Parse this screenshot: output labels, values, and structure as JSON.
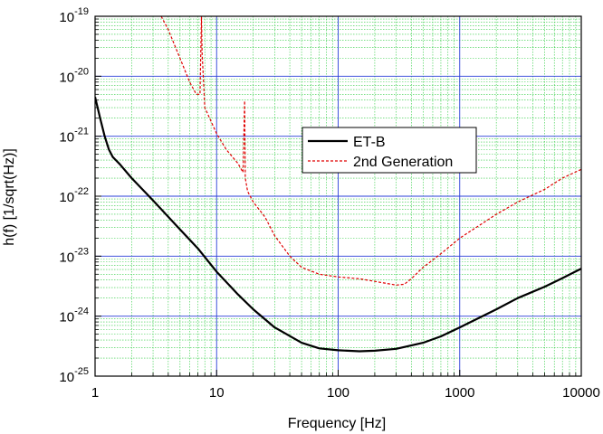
{
  "chart_data": {
    "type": "line",
    "xlabel": "Frequency [Hz]",
    "ylabel": "h(f) [1/sqrt(Hz)]",
    "xscale": "log",
    "yscale": "log",
    "xlim": [
      1,
      10000
    ],
    "ylim": [
      1e-25,
      1e-19
    ],
    "grid": true,
    "legend_position": "center-right",
    "x_ticks": [
      {
        "value": 1,
        "label": "1"
      },
      {
        "value": 10,
        "label": "10"
      },
      {
        "value": 100,
        "label": "100"
      },
      {
        "value": 1000,
        "label": "1000"
      },
      {
        "value": 10000,
        "label": "10000"
      }
    ],
    "y_ticks": [
      {
        "value": 1e-25,
        "mantissa": "10",
        "exponent": "-25"
      },
      {
        "value": 1e-24,
        "mantissa": "10",
        "exponent": "-24"
      },
      {
        "value": 1e-23,
        "mantissa": "10",
        "exponent": "-23"
      },
      {
        "value": 1e-22,
        "mantissa": "10",
        "exponent": "-22"
      },
      {
        "value": 1e-21,
        "mantissa": "10",
        "exponent": "-21"
      },
      {
        "value": 1e-20,
        "mantissa": "10",
        "exponent": "-20"
      },
      {
        "value": 1e-19,
        "mantissa": "10",
        "exponent": "-19"
      }
    ],
    "series": [
      {
        "name": "ET-B",
        "color": "#000000",
        "dash": "solid",
        "points": [
          [
            1,
            4.5e-21
          ],
          [
            1.1,
            2e-21
          ],
          [
            1.2,
            1e-21
          ],
          [
            1.3,
            6e-22
          ],
          [
            1.4,
            4.5e-22
          ],
          [
            1.6,
            3.4e-22
          ],
          [
            2,
            2e-22
          ],
          [
            3,
            8.5e-23
          ],
          [
            5,
            2.8e-23
          ],
          [
            7,
            1.35e-23
          ],
          [
            10,
            5.5e-24
          ],
          [
            15,
            2.3e-24
          ],
          [
            20,
            1.3e-24
          ],
          [
            30,
            6.5e-25
          ],
          [
            50,
            3.6e-25
          ],
          [
            70,
            2.9e-25
          ],
          [
            100,
            2.7e-25
          ],
          [
            150,
            2.6e-25
          ],
          [
            200,
            2.65e-25
          ],
          [
            300,
            2.85e-25
          ],
          [
            500,
            3.6e-25
          ],
          [
            700,
            4.6e-25
          ],
          [
            1000,
            6.5e-25
          ],
          [
            2000,
            1.3e-24
          ],
          [
            3000,
            2e-24
          ],
          [
            5000,
            3.1e-24
          ],
          [
            7000,
            4.3e-24
          ],
          [
            10000,
            6.2e-24
          ]
        ]
      },
      {
        "name": "2nd Generation",
        "color": "#e00000",
        "dash": "dashed",
        "points": [
          [
            3.5,
            1e-19
          ],
          [
            4,
            6e-20
          ],
          [
            5,
            2e-20
          ],
          [
            6,
            8e-21
          ],
          [
            6.8,
            5e-21
          ],
          [
            7.3,
            5e-21
          ],
          [
            7.5,
            1e-19
          ],
          [
            7.6,
            2.5e-20
          ],
          [
            8,
            3e-21
          ],
          [
            10,
            1.1e-21
          ],
          [
            12,
            6e-22
          ],
          [
            15,
            3.5e-22
          ],
          [
            16.5,
            2.5e-22
          ],
          [
            17,
            3.9e-21
          ],
          [
            17.2,
            2e-22
          ],
          [
            18,
            1.2e-22
          ],
          [
            20,
            8e-23
          ],
          [
            25,
            4.5e-23
          ],
          [
            30,
            2.2e-23
          ],
          [
            40,
            1e-23
          ],
          [
            50,
            6.5e-24
          ],
          [
            70,
            5e-24
          ],
          [
            100,
            4.5e-24
          ],
          [
            150,
            4.2e-24
          ],
          [
            200,
            3.8e-24
          ],
          [
            300,
            3.3e-24
          ],
          [
            350,
            3.4e-24
          ],
          [
            400,
            4.2e-24
          ],
          [
            500,
            6.5e-24
          ],
          [
            700,
            1.1e-23
          ],
          [
            1000,
            2e-23
          ],
          [
            2000,
            5e-23
          ],
          [
            3000,
            8e-23
          ],
          [
            5000,
            1.3e-22
          ],
          [
            7000,
            2e-22
          ],
          [
            10000,
            2.8e-22
          ]
        ]
      }
    ]
  },
  "colors": {
    "major_grid": "#2a3fd8",
    "minor_grid": "#2ecc40",
    "frame": "#000000"
  }
}
